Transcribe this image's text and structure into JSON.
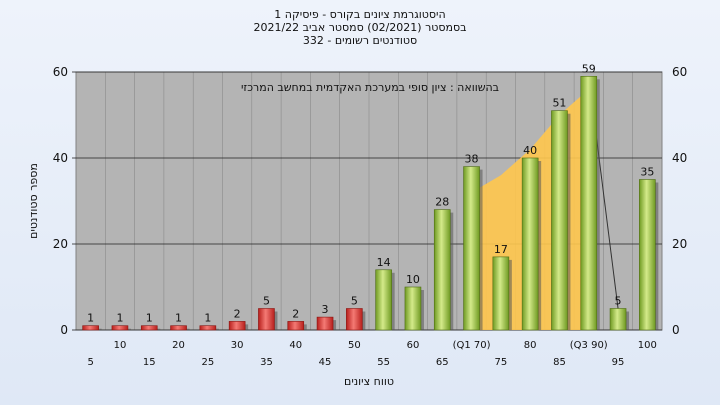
{
  "header": {
    "line1": "היסטוגרמת ציונים בקורס - פיסיקה 1",
    "line2": "בסמסטר  (02/2021)  סמסטר אביב 2021/22",
    "line3": "סטודנטים רשומים - 332"
  },
  "colors": {
    "fail_bar": "#d9302c",
    "pass_bar": "#8cba3a",
    "band": "#ffc64d",
    "plot_bg": "#b4b4b4"
  },
  "chart_data": {
    "type": "bar",
    "title": "היסטוגרמת ציונים בקורס - פיסיקה 1",
    "note": "בהשוואה : ציון סופי במערכת האקדמית במחשב המרכזי",
    "xlabel": "טווח ציונים",
    "ylabel": "מספר סטודנטים",
    "ylim": [
      0,
      60
    ],
    "yticks": [
      0,
      20,
      40,
      60
    ],
    "grid": true,
    "categories": [
      "5",
      "10",
      "15",
      "20",
      "25",
      "30",
      "35",
      "40",
      "45",
      "50",
      "55",
      "60",
      "65",
      "(Q1 70)",
      "75",
      "80",
      "85",
      "(Q3 90)",
      "95",
      "100"
    ],
    "values": [
      1,
      1,
      1,
      1,
      1,
      2,
      5,
      2,
      3,
      5,
      14,
      10,
      28,
      38,
      17,
      40,
      51,
      59,
      5,
      35
    ],
    "value_labels": [
      "1",
      "1",
      "1",
      "1",
      "1",
      "2",
      "5",
      "2",
      "3",
      "5",
      "14",
      "10",
      "28",
      "38",
      "17",
      "40",
      "51",
      "59",
      "5",
      "35"
    ],
    "series": [
      {
        "values": [
          1,
          1,
          1,
          1,
          1,
          2,
          5,
          2,
          3,
          5,
          14,
          10,
          28,
          38,
          17,
          40,
          51,
          59,
          5,
          35
        ]
      }
    ],
    "band_values": [
      32,
      36,
      42,
      50,
      56
    ],
    "fail_threshold": 55
  }
}
